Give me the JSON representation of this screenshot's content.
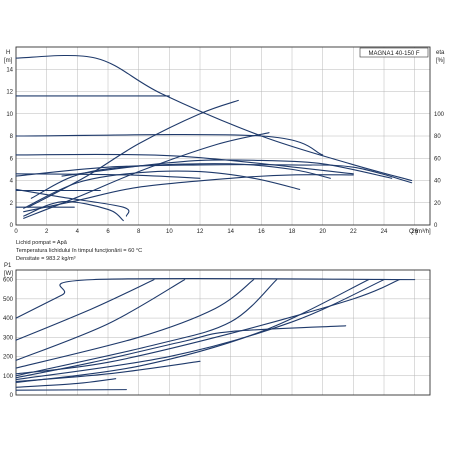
{
  "title": "MAGNA1 40-150 F",
  "notes": [
    "Lichid pompat = Apă",
    "Temperatura lichidului în timpul funcţionării = 60 °C",
    "Densitate = 983.2 kg/m³"
  ],
  "colors": {
    "curve": "#1f3a6b",
    "grid": "#b8b8b8",
    "frame": "#333333"
  },
  "chart_data": [
    {
      "type": "line",
      "xlabel": "Q [m³/h]",
      "ylabel_top": "H",
      "ylabel_bottom": "[m]",
      "y2label_top": "eta",
      "y2label_bottom": "[%]",
      "xlim": [
        0,
        27
      ],
      "ylim": [
        0,
        16
      ],
      "y2lim": [
        0,
        160
      ],
      "xticks": [
        0,
        2,
        4,
        6,
        8,
        10,
        12,
        14,
        16,
        18,
        20,
        22,
        24,
        26
      ],
      "yticks": [
        0,
        2,
        4,
        6,
        8,
        10,
        12,
        14
      ],
      "y2ticks": [
        0,
        20,
        40,
        60,
        80,
        100
      ],
      "grid": true,
      "series": [
        {
          "values": [
            [
              0,
              15
            ],
            [
              5.2,
              15
            ],
            [
              9.5,
              11.8
            ],
            [
              16,
              8
            ],
            [
              21.8,
              5.5
            ],
            [
              25.8,
              4.0
            ]
          ]
        },
        {
          "values": [
            [
              0,
              11.6
            ],
            [
              10,
              11.6
            ]
          ]
        },
        {
          "values": [
            [
              0,
              8
            ],
            [
              16,
              8
            ],
            [
              20,
              6.3
            ]
          ]
        },
        {
          "values": [
            [
              0,
              6.3
            ],
            [
              10.5,
              6.2
            ],
            [
              22,
              4.6
            ]
          ]
        },
        {
          "values": [
            [
              0,
              4.6
            ],
            [
              7.2,
              4.5
            ],
            [
              12,
              4.2
            ]
          ]
        },
        {
          "values": [
            [
              0,
              3.1
            ],
            [
              5.5,
              3.1
            ]
          ]
        },
        {
          "values": [
            [
              0,
              1.6
            ],
            [
              3.8,
              1.6
            ]
          ]
        },
        {
          "values": [
            [
              0.8,
              1.6
            ],
            [
              4.5,
              4.3
            ],
            [
              8,
              7.3
            ],
            [
              12,
              10.0
            ],
            [
              14.5,
              11.2
            ]
          ]
        },
        {
          "values": [
            [
              0.5,
              0.6
            ],
            [
              4,
              2.5
            ],
            [
              8,
              4.8
            ],
            [
              13,
              7.2
            ],
            [
              16.5,
              8.3
            ]
          ]
        },
        {
          "values": [
            [
              0,
              4.4
            ],
            [
              6,
              5.2
            ],
            [
              12,
              5.4
            ],
            [
              18,
              5.4
            ],
            [
              22,
              5.2
            ],
            [
              25.8,
              3.8
            ]
          ]
        },
        {
          "values": [
            [
              3,
              4.4
            ],
            [
              8,
              5.3
            ],
            [
              12,
              5.8
            ],
            [
              16,
              5.8
            ],
            [
              20,
              5.5
            ],
            [
              24.5,
              4.2
            ]
          ]
        },
        {
          "values": [
            [
              1,
              2.4
            ],
            [
              4,
              4.5
            ],
            [
              8,
              5.3
            ],
            [
              14,
              5.5
            ],
            [
              18,
              5.0
            ],
            [
              20.5,
              4.2
            ]
          ]
        },
        {
          "values": [
            [
              0.5,
              1.5
            ],
            [
              4,
              3.8
            ],
            [
              8,
              4.7
            ],
            [
              12,
              4.8
            ],
            [
              15.5,
              4.2
            ],
            [
              18.5,
              3.2
            ]
          ]
        },
        {
          "values": [
            [
              0.5,
              1.2
            ],
            [
              4,
              2.2
            ],
            [
              8,
              3.4
            ],
            [
              14,
              4.2
            ],
            [
              18,
              4.5
            ],
            [
              22,
              4.5
            ]
          ]
        },
        {
          "values": [
            [
              0.5,
              0.8
            ],
            [
              3,
              2.1
            ],
            [
              6,
              1.4
            ],
            [
              7,
              0.4
            ]
          ]
        },
        {
          "values": [
            [
              0,
              3.2
            ],
            [
              3,
              2.5
            ],
            [
              7,
              1.6
            ],
            [
              7.2,
              0.8
            ]
          ]
        }
      ]
    },
    {
      "type": "line",
      "xlabel": "",
      "ylabel_top": "P1",
      "ylabel_bottom": "[W]",
      "xlim": [
        0,
        27
      ],
      "ylim": [
        0,
        650
      ],
      "yticks": [
        0,
        100,
        200,
        300,
        400,
        500,
        600
      ],
      "grid": true,
      "series": [
        {
          "values": [
            [
              0,
              400
            ],
            [
              3,
              520
            ],
            [
              5,
              600
            ],
            [
              26,
              600
            ]
          ]
        },
        {
          "values": [
            [
              0,
              285
            ],
            [
              5,
              450
            ],
            [
              9,
              600
            ]
          ]
        },
        {
          "values": [
            [
              0,
              180
            ],
            [
              6,
              370
            ],
            [
              11,
              600
            ]
          ]
        },
        {
          "values": [
            [
              0,
              140
            ],
            [
              8,
              300
            ],
            [
              13,
              450
            ],
            [
              15.5,
              600
            ]
          ]
        },
        {
          "values": [
            [
              0,
              100
            ],
            [
              9,
              260
            ],
            [
              14,
              380
            ],
            [
              17,
              600
            ]
          ]
        },
        {
          "values": [
            [
              0,
              80
            ],
            [
              10,
              200
            ],
            [
              18,
              380
            ],
            [
              24,
              600
            ]
          ]
        },
        {
          "values": [
            [
              0,
              110
            ],
            [
              6,
              170
            ],
            [
              14,
              320
            ],
            [
              22,
              500
            ],
            [
              25,
              600
            ]
          ]
        },
        {
          "values": [
            [
              0,
              65
            ],
            [
              8,
              150
            ],
            [
              16,
              330
            ],
            [
              23,
              600
            ]
          ]
        },
        {
          "values": [
            [
              0,
              90
            ],
            [
              5,
              170
            ],
            [
              11,
              280
            ],
            [
              14,
              330
            ],
            [
              21.5,
              360
            ]
          ]
        },
        {
          "values": [
            [
              0,
              70
            ],
            [
              6,
              110
            ],
            [
              12,
              175
            ]
          ]
        },
        {
          "values": [
            [
              0,
              40
            ],
            [
              4,
              60
            ],
            [
              6.5,
              85
            ]
          ]
        },
        {
          "values": [
            [
              0,
              25
            ],
            [
              7.2,
              28
            ]
          ]
        }
      ]
    }
  ]
}
